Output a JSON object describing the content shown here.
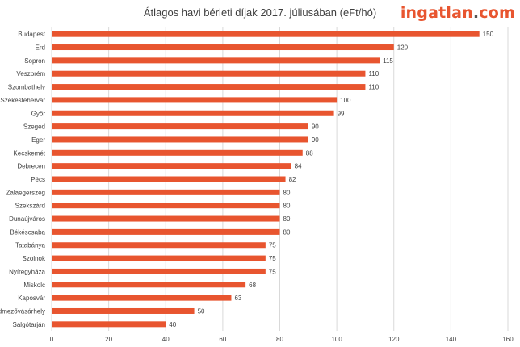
{
  "header": {
    "title": "Átlagos havi bérleti díjak 2017. júliusában (eFt/hó)",
    "logo_part1": "ingatlan",
    "logo_part2": ".",
    "logo_part3": "com"
  },
  "colors": {
    "bar": "#e8552f",
    "grid": "#d9d9d9",
    "logo_accent": "#e8552f"
  },
  "chart_data": {
    "type": "bar",
    "orientation": "horizontal",
    "title": "Átlagos havi bérleti díjak 2017. júliusában (eFt/hó)",
    "categories": [
      "Budapest",
      "Érd",
      "Sopron",
      "Veszprém",
      "Szombathely",
      "Székesfehérvár",
      "Győr",
      "Szeged",
      "Eger",
      "Kecskemét",
      "Debrecen",
      "Pécs",
      "Zalaegerszeg",
      "Szekszárd",
      "Dunaújváros",
      "Békéscsaba",
      "Tatabánya",
      "Szolnok",
      "Nyíregyháza",
      "Miskolc",
      "Kaposvár",
      "Hódmezővásárhely",
      "Salgótarján"
    ],
    "values": [
      150,
      120,
      115,
      110,
      110,
      100,
      99,
      90,
      90,
      88,
      84,
      82,
      80,
      80,
      80,
      80,
      75,
      75,
      75,
      68,
      63,
      50,
      40
    ],
    "xlim": [
      0,
      160
    ],
    "xticks": [
      0,
      20,
      40,
      60,
      80,
      100,
      120,
      140,
      160
    ],
    "grid": true
  }
}
